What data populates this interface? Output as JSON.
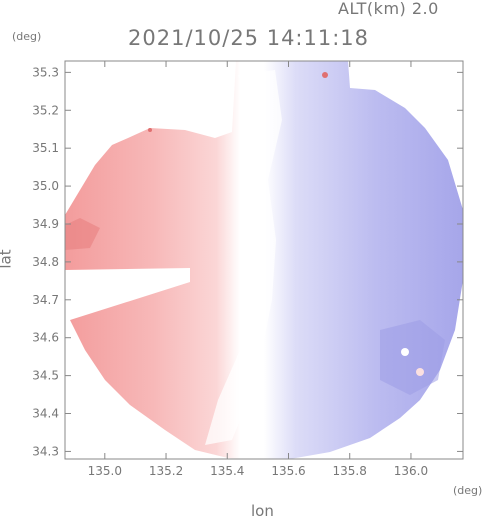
{
  "header": {
    "altitude_label": "ALT(km) 2.0",
    "timestamp": "2021/10/25 14:11:18"
  },
  "chart_data": {
    "type": "heatmap",
    "title": "2021/10/25 14:11:18",
    "subtitle": "ALT(km) 2.0",
    "xlabel": "lon",
    "ylabel": "lat",
    "x_unit": "(deg)",
    "y_unit": "(deg)",
    "xlim": [
      134.87,
      136.17
    ],
    "ylim": [
      34.28,
      35.33
    ],
    "x_ticks": [
      135.0,
      135.2,
      135.4,
      135.6,
      135.8,
      136.0
    ],
    "x_tick_labels": [
      "135.0",
      "135.2",
      "135.4",
      "135.6",
      "135.8",
      "136.0"
    ],
    "y_ticks": [
      34.3,
      34.4,
      34.5,
      34.6,
      34.7,
      34.8,
      34.9,
      35.0,
      35.1,
      35.2,
      35.3
    ],
    "y_tick_labels": [
      "34.3",
      "34.4",
      "34.5",
      "34.6",
      "34.7",
      "34.8",
      "34.9",
      "35.0",
      "35.1",
      "35.2",
      "35.3"
    ],
    "grid": false,
    "colors": {
      "positive": "#f4a3a3",
      "neutral": "#ffffff",
      "negative": "#a9a9ee",
      "axis": "#888888"
    }
  }
}
